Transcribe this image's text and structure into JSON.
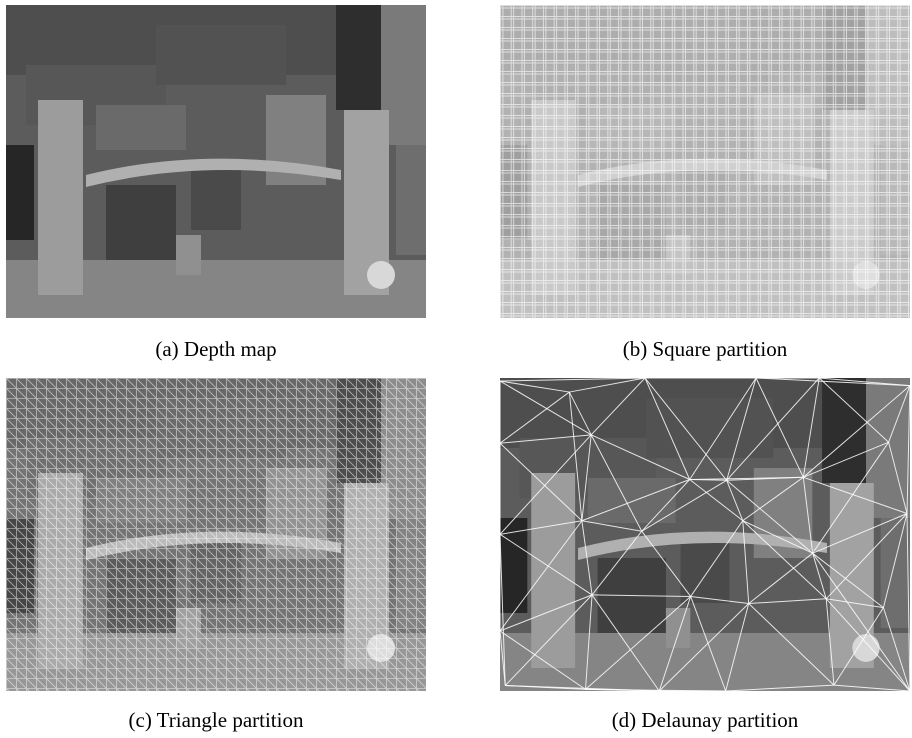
{
  "panels": [
    {
      "caption": "(a) Depth map"
    },
    {
      "caption": "(b) Square partition"
    },
    {
      "caption": "(c) Triangle partition"
    },
    {
      "caption": "(d) Delaunay partition"
    }
  ]
}
